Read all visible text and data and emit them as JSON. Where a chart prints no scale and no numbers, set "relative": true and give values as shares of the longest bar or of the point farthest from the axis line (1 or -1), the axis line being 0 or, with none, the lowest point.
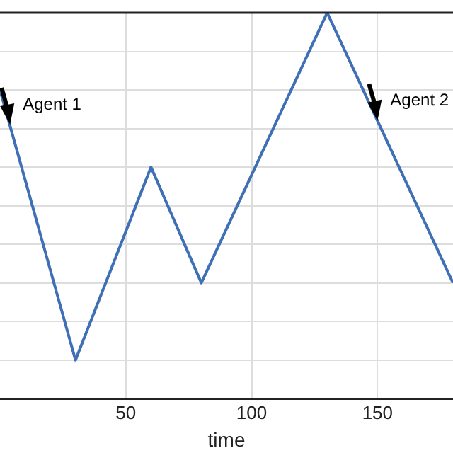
{
  "chart_data": {
    "type": "line",
    "relative": true,
    "xlabel": "time",
    "x": [
      0,
      30,
      60,
      80,
      130,
      180
    ],
    "series": [
      {
        "color": "#3f6fb5",
        "values": [
          0.8,
          0.1,
          0.6,
          0.3,
          1,
          0.3
        ]
      }
    ],
    "xlim": [
      0,
      180
    ],
    "xticks": [
      50,
      100,
      150
    ],
    "grid": true,
    "legend": false,
    "marker": "none",
    "line_style": "solid",
    "annotations": [
      {
        "text": "Agent 1",
        "x": 4,
        "y": 0.71
      },
      {
        "text": "Agent 2",
        "x": 150,
        "y": 0.72
      }
    ]
  }
}
